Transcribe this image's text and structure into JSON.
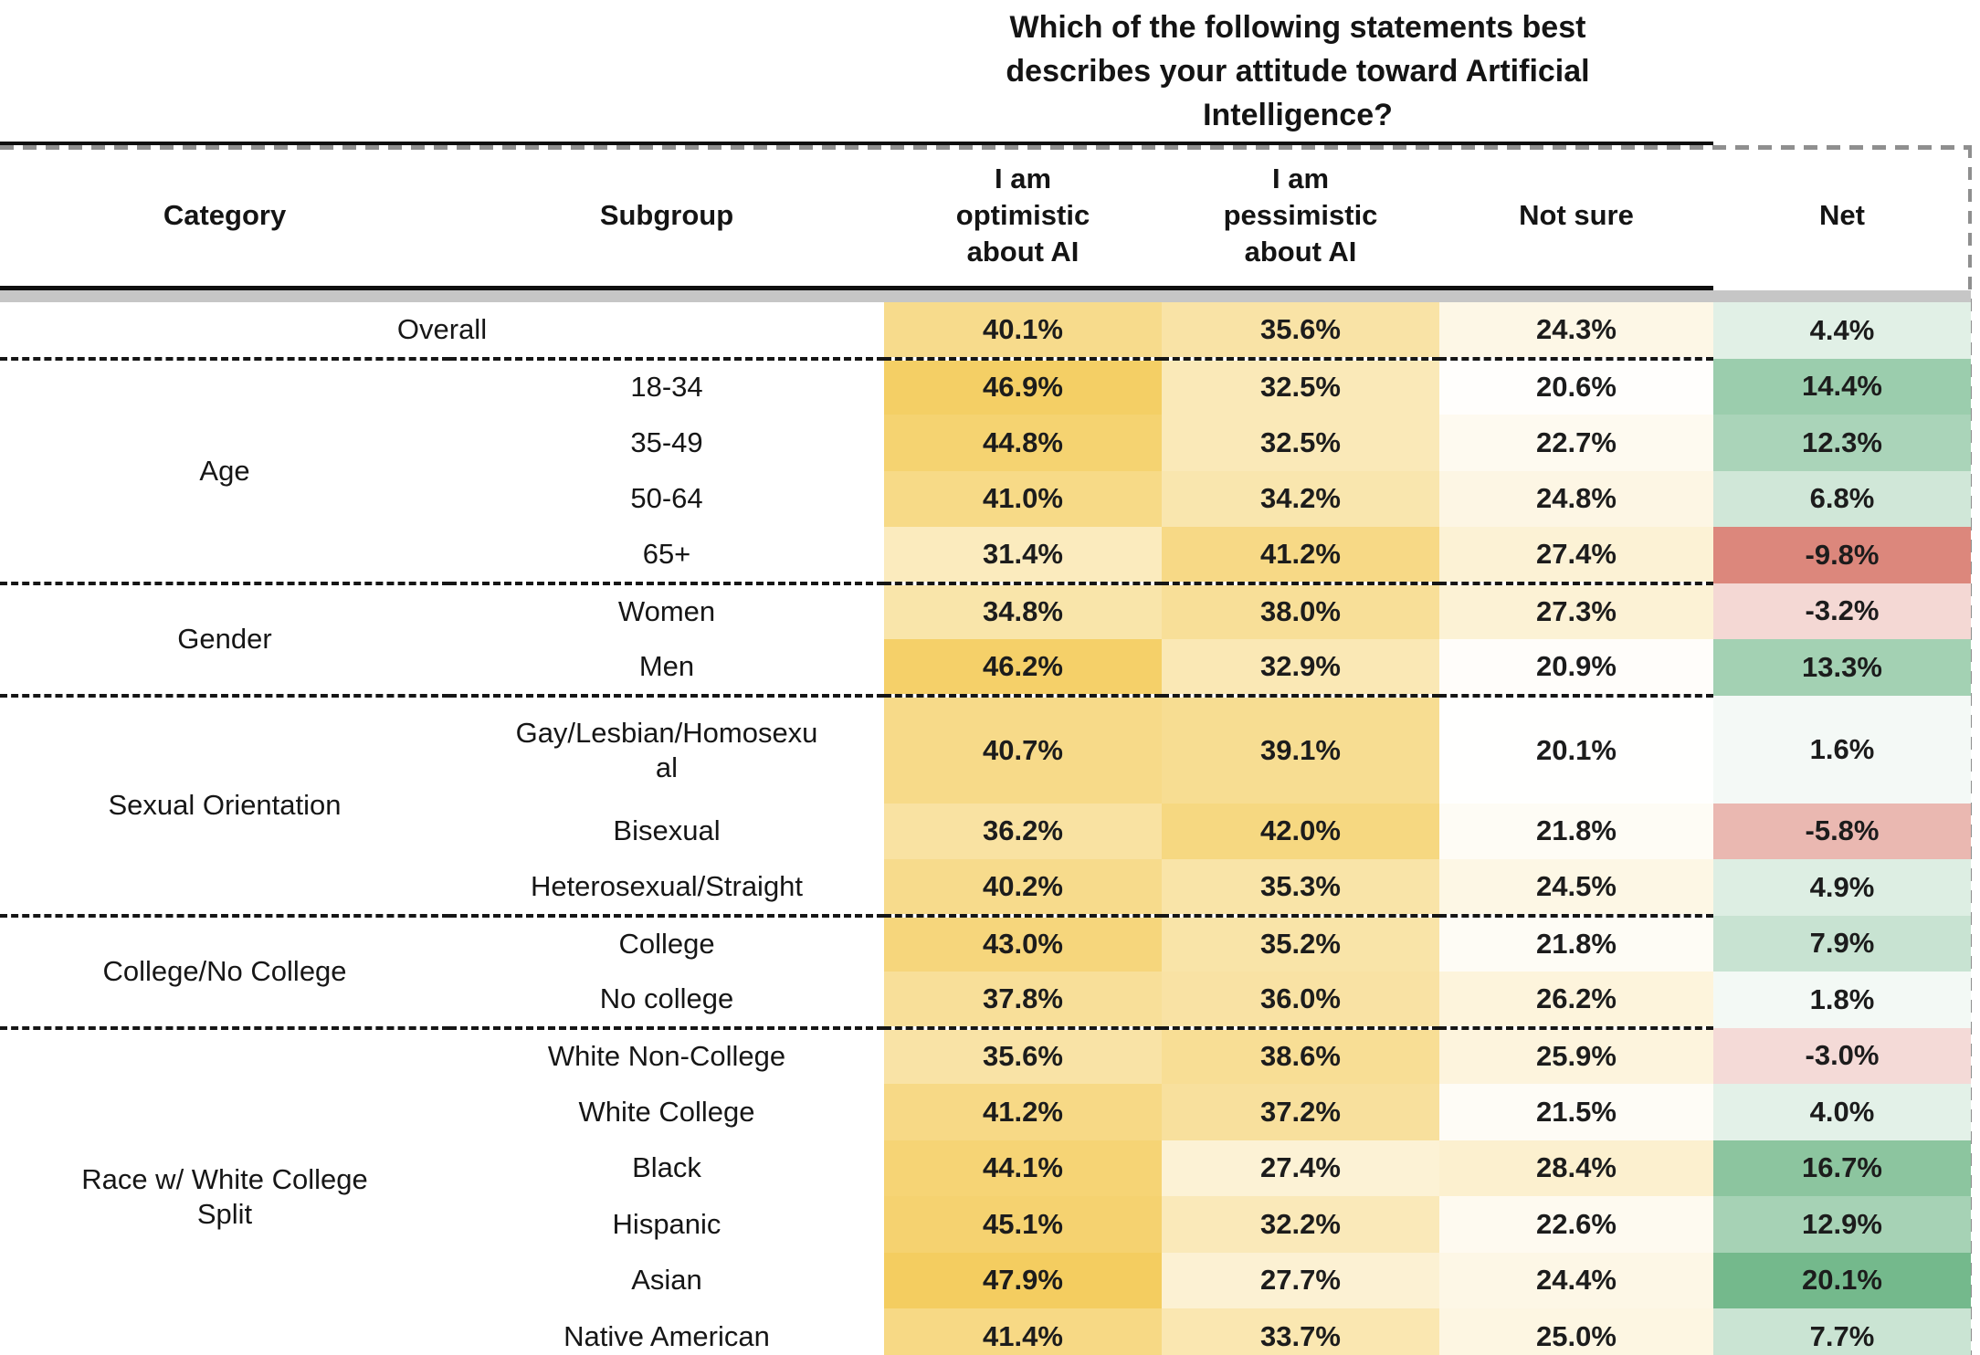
{
  "chart_data": {
    "type": "table",
    "title": "Which of the following statements best\ndescribes your attitude toward Artificial\nIntelligence?",
    "columns": {
      "category": "Category",
      "subgroup": "Subgroup",
      "optimistic": "I am\noptimistic\nabout AI",
      "pessimistic": "I am\npessimistic\nabout AI",
      "not_sure": "Not sure",
      "net": "Net"
    },
    "value_format": "percent_1dp",
    "groups": [
      {
        "category": "",
        "rows": [
          {
            "subgroup": "Overall",
            "optimistic": 40.1,
            "pessimistic": 35.6,
            "not_sure": 24.3,
            "net": 4.4
          }
        ]
      },
      {
        "category": "Age",
        "rows": [
          {
            "subgroup": "18-34",
            "optimistic": 46.9,
            "pessimistic": 32.5,
            "not_sure": 20.6,
            "net": 14.4
          },
          {
            "subgroup": "35-49",
            "optimistic": 44.8,
            "pessimistic": 32.5,
            "not_sure": 22.7,
            "net": 12.3
          },
          {
            "subgroup": "50-64",
            "optimistic": 41.0,
            "pessimistic": 34.2,
            "not_sure": 24.8,
            "net": 6.8
          },
          {
            "subgroup": "65+",
            "optimistic": 31.4,
            "pessimistic": 41.2,
            "not_sure": 27.4,
            "net": -9.8
          }
        ]
      },
      {
        "category": "Gender",
        "rows": [
          {
            "subgroup": "Women",
            "optimistic": 34.8,
            "pessimistic": 38.0,
            "not_sure": 27.3,
            "net": -3.2
          },
          {
            "subgroup": "Men",
            "optimistic": 46.2,
            "pessimistic": 32.9,
            "not_sure": 20.9,
            "net": 13.3
          }
        ]
      },
      {
        "category": "Sexual Orientation",
        "rows": [
          {
            "subgroup": "Gay/Lesbian/Homosexu\nal",
            "optimistic": 40.7,
            "pessimistic": 39.1,
            "not_sure": 20.1,
            "net": 1.6
          },
          {
            "subgroup": "Bisexual",
            "optimistic": 36.2,
            "pessimistic": 42.0,
            "not_sure": 21.8,
            "net": -5.8
          },
          {
            "subgroup": "Heterosexual/Straight",
            "optimistic": 40.2,
            "pessimistic": 35.3,
            "not_sure": 24.5,
            "net": 4.9
          }
        ]
      },
      {
        "category": "College/No College",
        "rows": [
          {
            "subgroup": "College",
            "optimistic": 43.0,
            "pessimistic": 35.2,
            "not_sure": 21.8,
            "net": 7.9
          },
          {
            "subgroup": "No college",
            "optimistic": 37.8,
            "pessimistic": 36.0,
            "not_sure": 26.2,
            "net": 1.8
          }
        ]
      },
      {
        "category": "Race w/ White College\nSplit",
        "rows": [
          {
            "subgroup": "White Non-College",
            "optimistic": 35.6,
            "pessimistic": 38.6,
            "not_sure": 25.9,
            "net": -3.0
          },
          {
            "subgroup": "White College",
            "optimistic": 41.2,
            "pessimistic": 37.2,
            "not_sure": 21.5,
            "net": 4.0
          },
          {
            "subgroup": "Black",
            "optimistic": 44.1,
            "pessimistic": 27.4,
            "not_sure": 28.4,
            "net": 16.7
          },
          {
            "subgroup": "Hispanic",
            "optimistic": 45.1,
            "pessimistic": 32.2,
            "not_sure": 22.6,
            "net": 12.9
          },
          {
            "subgroup": "Asian",
            "optimistic": 47.9,
            "pessimistic": 27.7,
            "not_sure": 24.4,
            "net": 20.1
          },
          {
            "subgroup": "Native American",
            "optimistic": 41.4,
            "pessimistic": 33.7,
            "not_sure": 25.0,
            "net": 7.7
          }
        ]
      }
    ],
    "color_scales": {
      "answer_columns": {
        "min_value": 20.0,
        "max_value": 48.0,
        "min_color": "#ffffff",
        "max_color": "#f4cd5f"
      },
      "net_positive": {
        "min_value": 0,
        "max_value": 20.1,
        "min_color": "#ffffff",
        "max_color": "#74b98c"
      },
      "net_negative": {
        "min_value": 0,
        "max_value": -9.8,
        "min_color": "#ffffff",
        "max_color": "#dc877c"
      }
    },
    "legend_position": "none",
    "grid": "dotted-group-separators"
  },
  "theme": {
    "text": "#191919",
    "header_line": "#0f0f0f",
    "separator_dots": "#161616",
    "gray_bar": "#c6c6c6",
    "net_dashed_border": "#8f8f8f"
  }
}
